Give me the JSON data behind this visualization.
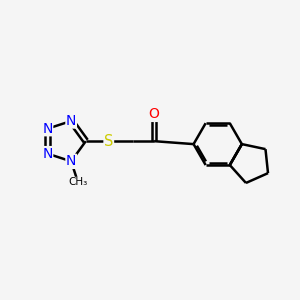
{
  "bg_color": "#f5f5f5",
  "bond_color": "#000000",
  "N_color": "#0000ff",
  "O_color": "#ff0000",
  "S_color": "#cccc00",
  "line_width": 1.8,
  "font_size": 10,
  "fig_size": [
    3.0,
    3.0
  ],
  "dpi": 100,
  "xlim": [
    0,
    10
  ],
  "ylim": [
    0,
    10
  ]
}
